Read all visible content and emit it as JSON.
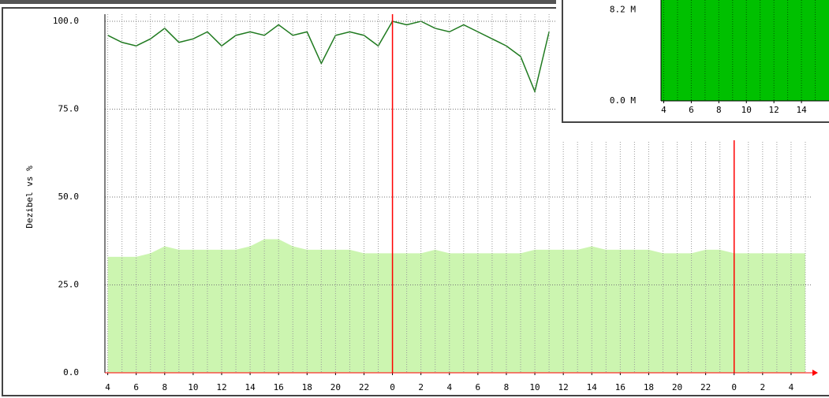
{
  "chart_data": [
    {
      "type": "line",
      "y_label": "Dezibel vs %",
      "xlim": [
        3.8,
        53.5
      ],
      "ylim": [
        0,
        100
      ],
      "xticks": [
        4,
        6,
        8,
        10,
        12,
        14,
        16,
        18,
        20,
        22,
        {
          "value": 24,
          "label": "0"
        },
        {
          "value": 26,
          "label": "2"
        },
        {
          "value": 28,
          "label": "4"
        },
        {
          "value": 30,
          "label": "6"
        },
        {
          "value": 32,
          "label": "8"
        },
        {
          "value": 34,
          "label": "10"
        },
        {
          "value": 36,
          "label": "12"
        },
        {
          "value": 38,
          "label": "14"
        },
        {
          "value": 40,
          "label": "16"
        },
        {
          "value": 42,
          "label": "18"
        },
        {
          "value": 44,
          "label": "20"
        },
        {
          "value": 46,
          "label": "22"
        },
        {
          "value": 48,
          "label": "0"
        },
        {
          "value": 50,
          "label": "2"
        },
        {
          "value": 52,
          "label": "4"
        }
      ],
      "minor_xticks": [
        4,
        5,
        6,
        7,
        8,
        9,
        10,
        11,
        12,
        13,
        14,
        15,
        16,
        17,
        18,
        19,
        20,
        21,
        22,
        23,
        24,
        25,
        26,
        27,
        28,
        29,
        30,
        31,
        32,
        33,
        34,
        35,
        36,
        37,
        38,
        39,
        40,
        41,
        42,
        43,
        44,
        45,
        46,
        47,
        48,
        49,
        50,
        51,
        52,
        53
      ],
      "yticks": [
        {
          "value": 0,
          "label": "0.0"
        },
        {
          "value": 25,
          "label": "25.0"
        },
        {
          "value": 50,
          "label": "50.0"
        },
        {
          "value": 75,
          "label": "75.0"
        },
        {
          "value": 100,
          "label": "100.0"
        }
      ],
      "grid": true,
      "vlines": [
        24,
        48
      ],
      "vline_color": "#ff0000",
      "series": [
        {
          "kind": "area",
          "color": "#ccf5b0",
          "x": [
            4,
            5,
            6,
            7,
            8,
            9,
            10,
            11,
            12,
            13,
            14,
            15,
            16,
            17,
            18,
            19,
            20,
            21,
            22,
            23,
            24,
            25,
            26,
            27,
            28,
            29,
            30,
            31,
            32,
            33,
            34,
            35,
            36,
            37,
            38,
            39,
            40,
            41,
            42,
            43,
            44,
            45,
            46,
            47,
            48,
            49,
            50,
            51,
            52,
            53
          ],
          "values": [
            33,
            33,
            33,
            34,
            36,
            35,
            35,
            35,
            35,
            35,
            36,
            38,
            38,
            36,
            35,
            35,
            35,
            35,
            34,
            34,
            34,
            34,
            34,
            35,
            34,
            34,
            34,
            34,
            34,
            34,
            35,
            35,
            35,
            35,
            36,
            35,
            35,
            35,
            35,
            34,
            34,
            34,
            35,
            35,
            34,
            34,
            34,
            34,
            34,
            34
          ]
        },
        {
          "kind": "line",
          "color": "#1f7a1f",
          "x": [
            4,
            5,
            6,
            7,
            8,
            9,
            10,
            11,
            12,
            13,
            14,
            15,
            16,
            17,
            18,
            19,
            20,
            21,
            22,
            23,
            24,
            25,
            26,
            27,
            28,
            29,
            30,
            31,
            32,
            33,
            34,
            35
          ],
          "values": [
            96,
            94,
            93,
            95,
            98,
            94,
            95,
            97,
            93,
            96,
            97,
            96,
            99,
            96,
            97,
            88,
            96,
            97,
            96,
            93,
            100,
            99,
            100,
            98,
            97,
            99,
            97,
            95,
            93,
            90,
            80,
            97
          ]
        }
      ]
    },
    {
      "type": "area",
      "xlim": [
        3.8,
        16
      ],
      "ylim": [
        0,
        9100000
      ],
      "xticks": [
        4,
        6,
        8,
        10,
        12,
        14
      ],
      "minor_xticks": [
        4,
        5,
        6,
        7,
        8,
        9,
        10,
        11,
        12,
        13,
        14,
        15
      ],
      "yticks": [
        {
          "value": 0,
          "label": "0.0 M"
        },
        {
          "value": 8200000,
          "label": "8.2 M"
        }
      ],
      "series": [
        {
          "kind": "area",
          "color": "#00c000",
          "x": [
            3.8,
            6,
            8,
            10,
            12,
            14,
            16
          ],
          "values": [
            9100000,
            9100000,
            9100000,
            9100000,
            9100000,
            9100000,
            9100000
          ]
        }
      ]
    }
  ]
}
